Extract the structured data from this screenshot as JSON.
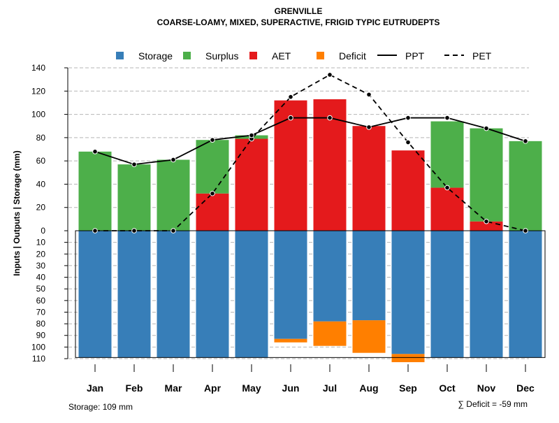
{
  "chart_data": {
    "type": "bar",
    "title": "GRENVILLE",
    "subtitle": "COARSE-LOAMY, MIXED, SUPERACTIVE, FRIGID TYPIC EUTRUDEPTS",
    "ylabel": "Inputs | Outputs | Storage     (mm)",
    "ylim": [
      -110,
      140
    ],
    "upper_ticks": [
      "0",
      "20",
      "40",
      "60",
      "80",
      "100",
      "120",
      "140"
    ],
    "lower_ticks": [
      "10",
      "20",
      "30",
      "40",
      "50",
      "60",
      "70",
      "80",
      "90",
      "100",
      "110"
    ],
    "categories": [
      "Jan",
      "Feb",
      "Mar",
      "Apr",
      "May",
      "Jun",
      "Jul",
      "Aug",
      "Sep",
      "Oct",
      "Nov",
      "Dec"
    ],
    "legend": {
      "storage": "Storage",
      "surplus": "Surplus",
      "aet": "AET",
      "deficit": "Deficit",
      "ppt": "PPT",
      "pet": "PET"
    },
    "colors": {
      "storage": "#377EB8",
      "surplus": "#4DAF4A",
      "aet": "#E41A1C",
      "deficit": "#FF7F00"
    },
    "series": {
      "aet": [
        0,
        0,
        0,
        32,
        79,
        112,
        113,
        90,
        69,
        37,
        8,
        0
      ],
      "surplus": [
        68,
        57,
        61,
        46,
        3,
        0,
        0,
        0,
        0,
        57,
        80,
        77
      ],
      "storage": [
        109,
        109,
        109,
        109,
        109,
        93,
        78,
        77,
        106,
        109,
        109,
        109
      ],
      "deficit": [
        0,
        0,
        0,
        0,
        0,
        3,
        21,
        28,
        7,
        0,
        0,
        0
      ],
      "ppt": [
        68,
        57,
        61,
        78,
        82,
        97,
        97,
        89,
        97,
        97,
        88,
        77
      ],
      "pet": [
        0,
        0,
        0,
        32,
        79,
        115,
        134,
        117,
        76,
        37,
        8,
        0
      ]
    },
    "storage_note": "Storage: 109 mm",
    "deficit_note": "∑ Deficit = -59 mm"
  }
}
